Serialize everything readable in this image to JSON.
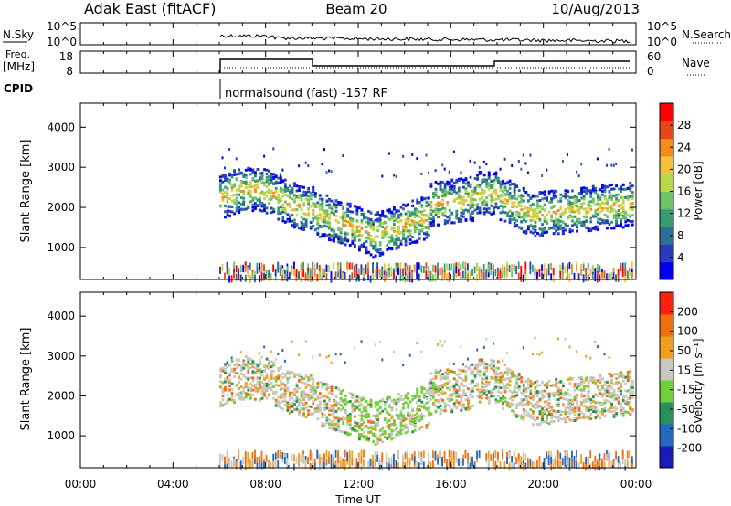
{
  "header": {
    "radar": "Adak East (fitACF)",
    "beam": "Beam 20",
    "date": "10/Aug/2013"
  },
  "panels": {
    "nsky_label": "N.Sky",
    "nsky_ticks": [
      "10^5",
      "10^0"
    ],
    "nsearch_label": "N.Search",
    "nsearch_ticks": [
      "10^5",
      "10^0"
    ],
    "freq_label_1": "Freq.",
    "freq_label_2": "[MHz]",
    "freq_ticks": [
      "18",
      "8"
    ],
    "nave_label": "Nave",
    "nave_ticks": [
      "60",
      "0"
    ],
    "cpid_label": "CPID",
    "cpid_text": "normalsound (fast) -157 RF"
  },
  "chart_data": [
    {
      "type": "heatmap",
      "name": "power",
      "ylabel": "Slant Range [km]",
      "yticks": [
        1000,
        2000,
        3000,
        4000
      ],
      "colorbar_label": "Power [dB]",
      "colorbar_ticks": [
        "28",
        "24",
        "20",
        "16",
        "12",
        "8",
        "4"
      ],
      "colorbar_colors": [
        "#0000ee",
        "#2a3ab8",
        "#2e6e9a",
        "#3a9a72",
        "#6fc26a",
        "#b7d84a",
        "#f5c13a",
        "#f28c1a",
        "#e8451a",
        "#ff0000"
      ],
      "ylim": [
        200,
        4600
      ]
    },
    {
      "type": "heatmap",
      "name": "velocity",
      "ylabel": "Slant Range [km]",
      "yticks": [
        1000,
        2000,
        3000,
        4000
      ],
      "colorbar_label": "Velocity [m s⁻¹]",
      "colorbar_ticks": [
        "200",
        "100",
        "50",
        "15",
        "-15",
        "-50",
        "-100",
        "-200"
      ],
      "colorbar_colors": [
        "#1a1ab8",
        "#2468c0",
        "#2a8f5a",
        "#6fcf3a",
        "#c8c8c0",
        "#f0a020",
        "#f07010",
        "#ff2010"
      ],
      "ylim": [
        200,
        4600
      ]
    }
  ],
  "xaxis": {
    "label": "Time UT",
    "ticks": [
      "00:00",
      "04:00",
      "08:00",
      "12:00",
      "16:00",
      "20:00",
      "00:00"
    ]
  }
}
